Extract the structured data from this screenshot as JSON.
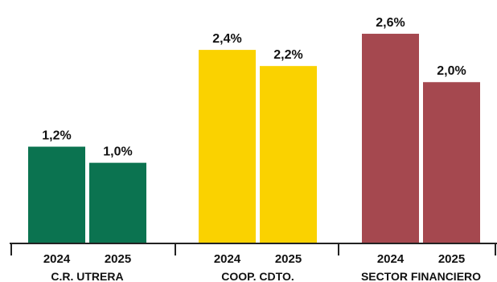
{
  "chart_data": {
    "type": "bar",
    "title": "",
    "xlabel": "",
    "ylabel": "",
    "ylim": [
      0,
      2.65
    ],
    "grid": false,
    "legend": "none",
    "groups": [
      {
        "name": "C.R. UTRERA",
        "color": "#0b7350",
        "bars": [
          {
            "category": "2024",
            "value": 1.2,
            "label": "1,2%"
          },
          {
            "category": "2025",
            "value": 1.0,
            "label": "1,0%"
          }
        ]
      },
      {
        "name": "COOP. CDTO.",
        "color": "#fad200",
        "bars": [
          {
            "category": "2024",
            "value": 2.4,
            "label": "2,4%"
          },
          {
            "category": "2025",
            "value": 2.2,
            "label": "2,2%"
          }
        ]
      },
      {
        "name": "SECTOR FINANCIERO",
        "color": "#a5484f",
        "bars": [
          {
            "category": "2024",
            "value": 2.6,
            "label": "2,6%"
          },
          {
            "category": "2025",
            "value": 2.0,
            "label": "2,0%"
          }
        ]
      }
    ]
  }
}
